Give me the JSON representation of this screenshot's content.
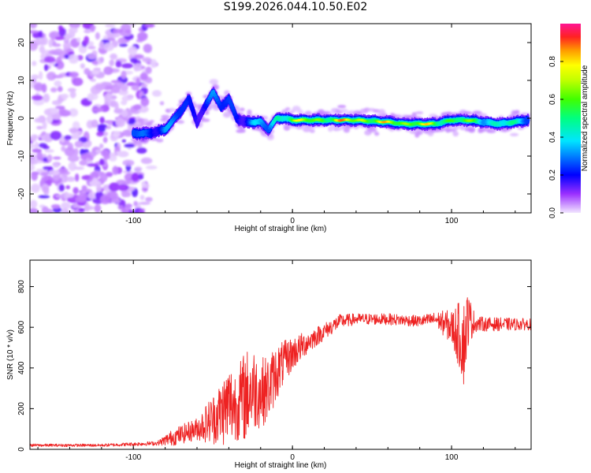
{
  "title": "S199.2026.044.10.50.E02",
  "chart_data": [
    {
      "type": "heatmap",
      "name": "spectrogram",
      "xlabel": "Height of straight line (km)",
      "ylabel": "Frequency (Hz)",
      "xlim": [
        -165,
        150
      ],
      "ylim": [
        -25,
        25
      ],
      "xticks": [
        -100,
        0,
        100
      ],
      "yticks": [
        -20,
        -10,
        0,
        10,
        20
      ],
      "colorbar": {
        "label": "Normalized spectral amplitude",
        "range": [
          0,
          1
        ],
        "ticks": [
          0.0,
          0.2,
          0.4,
          0.6,
          0.8
        ],
        "tick_labels": [
          "0.0",
          "0.2",
          "0.4",
          "0.6",
          "0.8"
        ]
      },
      "ridge": {
        "x": [
          -100,
          -90,
          -80,
          -70,
          -65,
          -60,
          -55,
          -50,
          -45,
          -40,
          -35,
          -30,
          -25,
          -20,
          -15,
          -10,
          -5,
          0,
          20,
          40,
          60,
          70,
          80,
          90,
          100,
          110,
          120,
          130,
          140,
          148
        ],
        "y": [
          -4,
          -4,
          -3,
          2,
          5,
          -1,
          3,
          7,
          3,
          5,
          0,
          -1,
          -1,
          -1,
          -3,
          0,
          0,
          -0.5,
          -0.5,
          -0.5,
          -1,
          -1.5,
          -1.5,
          -1.5,
          -0.5,
          -0.5,
          -1,
          -1.5,
          -1,
          -0.5
        ],
        "amplitude": [
          0.35,
          0.3,
          0.4,
          0.3,
          0.25,
          0.3,
          0.3,
          0.35,
          0.3,
          0.3,
          0.3,
          0.3,
          0.4,
          0.4,
          0.35,
          0.6,
          0.75,
          0.8,
          0.85,
          0.95,
          0.85,
          0.9,
          0.9,
          0.75,
          0.8,
          0.7,
          0.55,
          0.6,
          0.5,
          0.45
        ]
      }
    },
    {
      "type": "line",
      "name": "snr",
      "xlabel": "Height of straight line (km)",
      "ylabel": "SNR (10 * v/v)",
      "xlim": [
        -165,
        150
      ],
      "ylim": [
        0,
        930
      ],
      "xticks": [
        -100,
        0,
        100
      ],
      "yticks": [
        0,
        200,
        400,
        600,
        800
      ],
      "color": "#ee2222",
      "envelope": {
        "x": [
          -165,
          -120,
          -85,
          -75,
          -60,
          -50,
          -45,
          -40,
          -35,
          -30,
          -25,
          -20,
          -15,
          -10,
          -5,
          0,
          10,
          20,
          30,
          40,
          60,
          80,
          90,
          95,
          100,
          105,
          108,
          110,
          115,
          120,
          150
        ],
        "mean": [
          20,
          20,
          30,
          60,
          100,
          150,
          180,
          220,
          220,
          260,
          300,
          280,
          300,
          380,
          430,
          470,
          530,
          580,
          630,
          640,
          640,
          630,
          640,
          620,
          600,
          560,
          520,
          640,
          620,
          615,
          615
        ],
        "spread": [
          10,
          10,
          15,
          60,
          80,
          180,
          230,
          300,
          250,
          330,
          300,
          250,
          230,
          200,
          150,
          120,
          80,
          60,
          50,
          40,
          40,
          40,
          50,
          90,
          120,
          240,
          320,
          200,
          60,
          50,
          40
        ]
      }
    }
  ]
}
